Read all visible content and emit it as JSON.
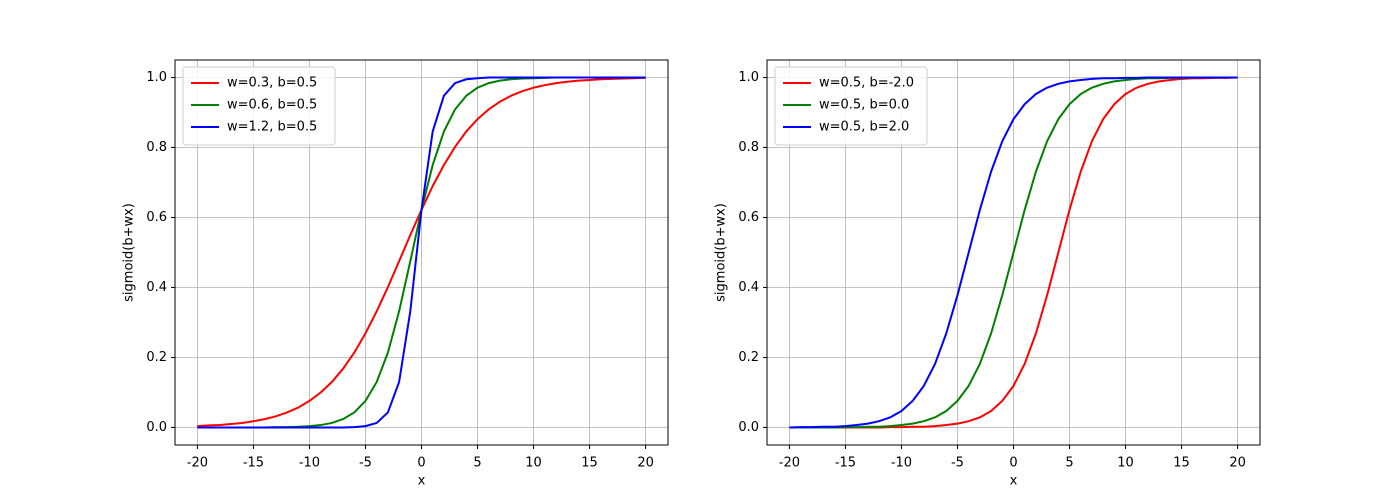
{
  "chart_data": [
    {
      "type": "line",
      "xlabel": "x",
      "ylabel": "sigmoid(b+wx)",
      "grid": true,
      "legend": "upper left",
      "xlim": [
        -22,
        22
      ],
      "ylim": [
        -0.05,
        1.05
      ],
      "xticks": [
        -20,
        -15,
        -10,
        -5,
        0,
        5,
        10,
        15,
        20
      ],
      "yticks": [
        {
          "value": 0,
          "label": "0.0"
        },
        0.2,
        0.4,
        0.6,
        0.8,
        {
          "value": 1,
          "label": "1.0"
        }
      ],
      "x": [
        -20,
        -19,
        -18,
        -17,
        -16,
        -15,
        -14,
        -13,
        -12,
        -11,
        -10,
        -9,
        -8,
        -7,
        -6,
        -5,
        -4,
        -3,
        -2,
        -1,
        0,
        1,
        2,
        3,
        4,
        5,
        6,
        7,
        8,
        9,
        10,
        11,
        12,
        13,
        14,
        15,
        16,
        17,
        18,
        19,
        20
      ],
      "series": [
        {
          "name": "w=0.3, b=0.5",
          "color": "#ff0000",
          "values": [
            0.004,
            0.006,
            0.007,
            0.01,
            0.013,
            0.018,
            0.024,
            0.032,
            0.043,
            0.057,
            0.076,
            0.1,
            0.13,
            0.168,
            0.214,
            0.269,
            0.332,
            0.401,
            0.475,
            0.55,
            0.622,
            0.69,
            0.75,
            0.802,
            0.846,
            0.881,
            0.909,
            0.931,
            0.948,
            0.961,
            0.971,
            0.978,
            0.984,
            0.988,
            0.991,
            0.993,
            0.995,
            0.996,
            0.997,
            0.998,
            0.999
          ]
        },
        {
          "name": "w=0.6, b=0.5",
          "color": "#008000",
          "values": [
            0.0,
            0.0,
            0.0,
            0.0,
            0.0,
            0.0,
            0.0,
            0.001,
            0.001,
            0.002,
            0.004,
            0.007,
            0.013,
            0.024,
            0.043,
            0.076,
            0.13,
            0.214,
            0.332,
            0.475,
            0.622,
            0.75,
            0.846,
            0.909,
            0.948,
            0.971,
            0.984,
            0.991,
            0.995,
            0.997,
            0.998,
            0.999,
            1.0,
            1.0,
            1.0,
            1.0,
            1.0,
            1.0,
            1.0,
            1.0,
            1.0
          ]
        },
        {
          "name": "w=1.2, b=0.5",
          "color": "#0000ff",
          "values": [
            0.0,
            0.0,
            0.0,
            0.0,
            0.0,
            0.0,
            0.0,
            0.0,
            0.0,
            0.0,
            0.0,
            0.0,
            0.0,
            0.0,
            0.001,
            0.004,
            0.013,
            0.043,
            0.13,
            0.332,
            0.622,
            0.846,
            0.948,
            0.984,
            0.995,
            0.998,
            1.0,
            1.0,
            1.0,
            1.0,
            1.0,
            1.0,
            1.0,
            1.0,
            1.0,
            1.0,
            1.0,
            1.0,
            1.0,
            1.0,
            1.0
          ]
        }
      ]
    },
    {
      "type": "line",
      "xlabel": "x",
      "ylabel": "sigmoid(b+wx)",
      "grid": true,
      "legend": "upper left",
      "xlim": [
        -22,
        22
      ],
      "ylim": [
        -0.05,
        1.05
      ],
      "xticks": [
        -20,
        -15,
        -10,
        -5,
        0,
        5,
        10,
        15,
        20
      ],
      "yticks": [
        {
          "value": 0,
          "label": "0.0"
        },
        0.2,
        0.4,
        0.6,
        0.8,
        {
          "value": 1,
          "label": "1.0"
        }
      ],
      "x": [
        -20,
        -19,
        -18,
        -17,
        -16,
        -15,
        -14,
        -13,
        -12,
        -11,
        -10,
        -9,
        -8,
        -7,
        -6,
        -5,
        -4,
        -3,
        -2,
        -1,
        0,
        1,
        2,
        3,
        4,
        5,
        6,
        7,
        8,
        9,
        10,
        11,
        12,
        13,
        14,
        15,
        16,
        17,
        18,
        19,
        20
      ],
      "series": [
        {
          "name": "w=0.5, b=-2.0",
          "color": "#ff0000",
          "values": [
            0.0,
            0.0,
            0.0,
            0.0,
            0.0,
            0.0,
            0.0,
            0.0,
            0.0,
            0.001,
            0.001,
            0.002,
            0.002,
            0.004,
            0.007,
            0.011,
            0.018,
            0.029,
            0.047,
            0.076,
            0.119,
            0.182,
            0.269,
            0.378,
            0.5,
            0.622,
            0.731,
            0.818,
            0.881,
            0.924,
            0.953,
            0.971,
            0.982,
            0.989,
            0.993,
            0.996,
            0.998,
            0.998,
            0.999,
            0.999,
            1.0
          ]
        },
        {
          "name": "w=0.5, b=0.0",
          "color": "#008000",
          "values": [
            0.0,
            0.0,
            0.0,
            0.0,
            0.0,
            0.001,
            0.001,
            0.002,
            0.002,
            0.004,
            0.007,
            0.011,
            0.018,
            0.029,
            0.047,
            0.076,
            0.119,
            0.182,
            0.269,
            0.378,
            0.5,
            0.622,
            0.731,
            0.818,
            0.881,
            0.924,
            0.953,
            0.971,
            0.982,
            0.989,
            0.993,
            0.996,
            0.998,
            0.998,
            0.999,
            0.999,
            1.0,
            1.0,
            1.0,
            1.0,
            1.0
          ]
        },
        {
          "name": "w=0.5, b=2.0",
          "color": "#0000ff",
          "values": [
            0.0,
            0.001,
            0.001,
            0.002,
            0.002,
            0.004,
            0.007,
            0.011,
            0.018,
            0.029,
            0.047,
            0.076,
            0.119,
            0.182,
            0.269,
            0.378,
            0.5,
            0.622,
            0.731,
            0.818,
            0.881,
            0.924,
            0.953,
            0.971,
            0.982,
            0.989,
            0.993,
            0.996,
            0.998,
            0.998,
            0.999,
            0.999,
            1.0,
            1.0,
            1.0,
            1.0,
            1.0,
            1.0,
            1.0,
            1.0,
            1.0
          ]
        }
      ]
    }
  ]
}
